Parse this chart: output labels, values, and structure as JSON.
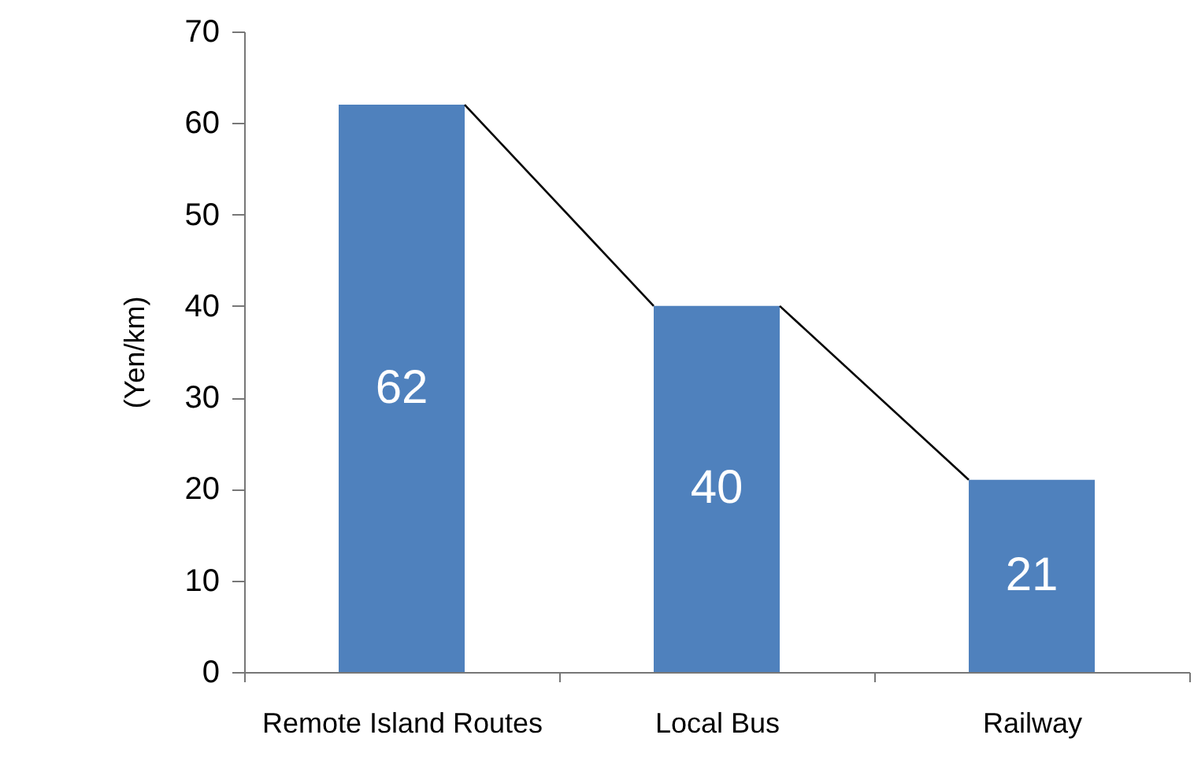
{
  "chart_data": {
    "type": "bar",
    "ylabel": "(Yen/km)",
    "categories": [
      "Remote Island Routes",
      "Local Bus",
      "Railway"
    ],
    "values": [
      62,
      40,
      21
    ],
    "color": "#4f81bd",
    "ylim": [
      0,
      70
    ],
    "yticks": [
      0,
      10,
      20,
      30,
      40,
      50,
      60,
      70
    ],
    "grid": false,
    "data_labels": true
  }
}
